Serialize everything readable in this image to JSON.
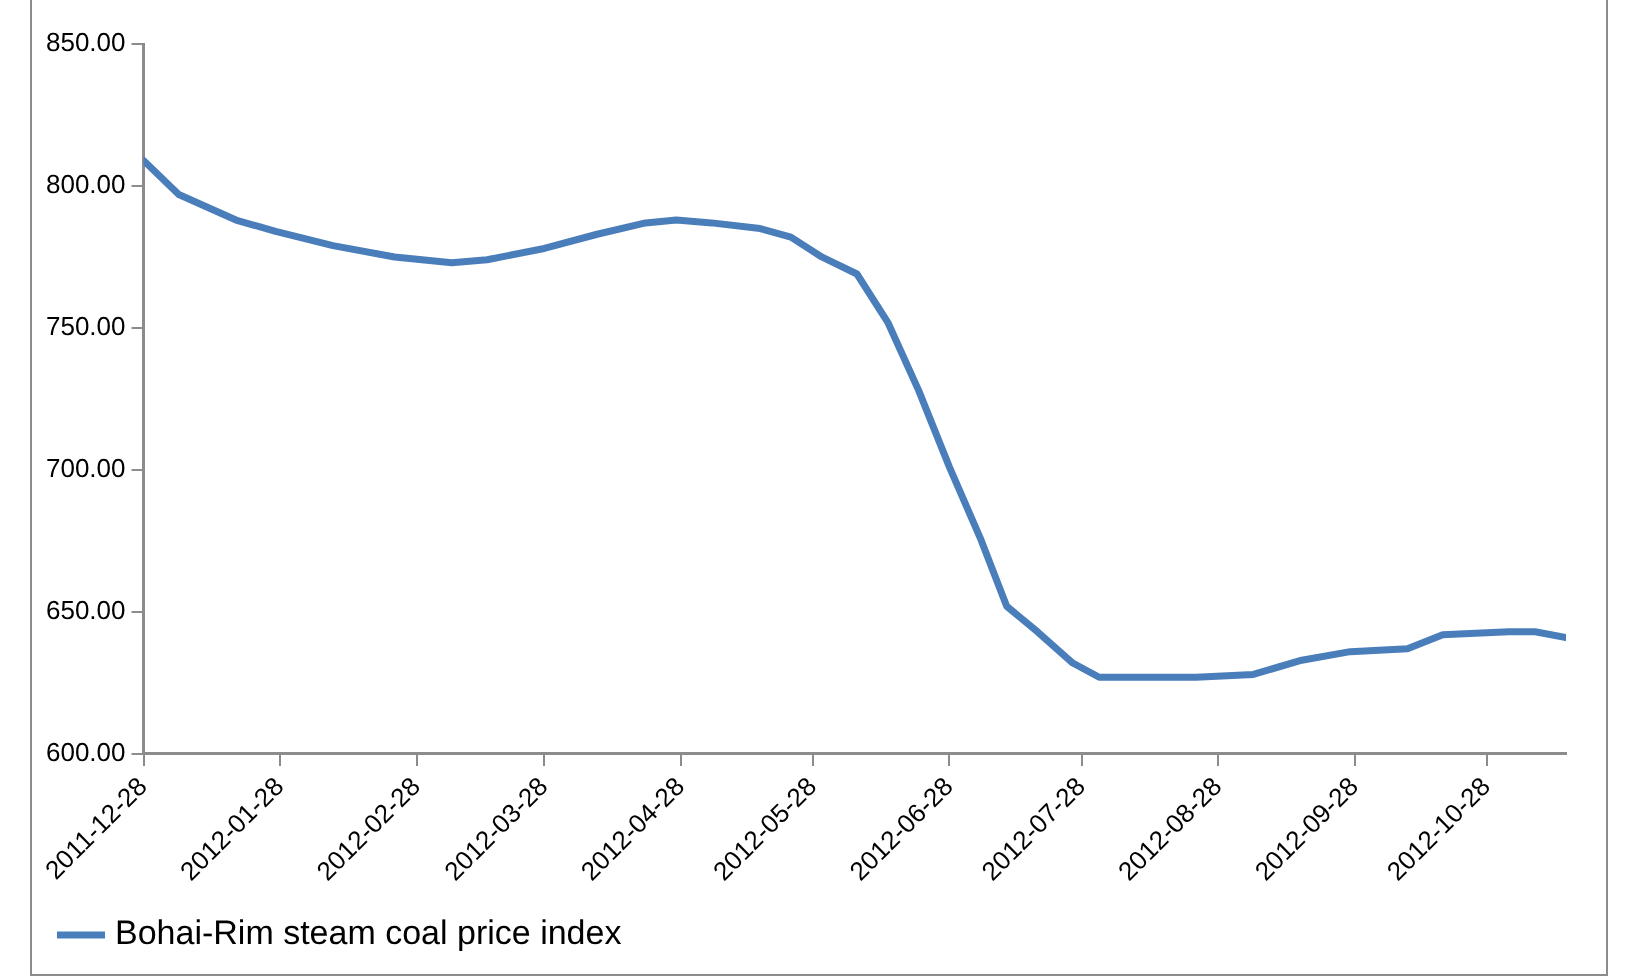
{
  "chart_data": {
    "type": "line",
    "x": [
      "2011-12-28",
      "2012-01-05",
      "2012-01-18",
      "2012-01-27",
      "2012-02-09",
      "2012-02-23",
      "2012-03-07",
      "2012-03-15",
      "2012-03-28",
      "2012-04-09",
      "2012-04-20",
      "2012-04-27",
      "2012-05-05",
      "2012-05-16",
      "2012-05-23",
      "2012-05-30",
      "2012-06-07",
      "2012-06-14",
      "2012-06-21",
      "2012-06-28",
      "2012-07-05",
      "2012-07-11",
      "2012-07-18",
      "2012-07-26",
      "2012-08-01",
      "2012-08-23",
      "2012-09-05",
      "2012-09-16",
      "2012-09-27",
      "2012-10-10",
      "2012-10-18",
      "2012-11-02",
      "2012-11-08",
      "2012-11-15"
    ],
    "series": [
      {
        "name": "Bohai-Rim steam coal price index",
        "color": "#4a7ebb",
        "values": [
          809,
          797,
          788,
          784,
          779,
          775,
          773,
          774,
          778,
          783,
          787,
          788,
          787,
          785,
          782,
          775,
          769,
          752,
          728,
          701,
          676,
          652,
          643,
          632,
          627,
          627,
          628,
          633,
          636,
          637,
          642,
          643,
          643,
          641
        ]
      }
    ],
    "xlim": [
      "2011-12-28",
      "2012-11-15"
    ],
    "xticks": [
      "2011-12-28",
      "2012-01-28",
      "2012-02-28",
      "2012-03-28",
      "2012-04-28",
      "2012-05-28",
      "2012-06-28",
      "2012-07-28",
      "2012-08-28",
      "2012-09-28",
      "2012-10-28"
    ],
    "ylim": [
      600,
      850
    ],
    "yticks": [
      {
        "value": 600,
        "label": "600.00"
      },
      {
        "value": 650,
        "label": "650.00"
      },
      {
        "value": 700,
        "label": "700.00"
      },
      {
        "value": 750,
        "label": "750.00"
      },
      {
        "value": 800,
        "label": "800.00"
      },
      {
        "value": 850,
        "label": "850.00"
      }
    ],
    "grid": false,
    "legend": "bottom left",
    "marker": "none",
    "line_style": "solid"
  }
}
